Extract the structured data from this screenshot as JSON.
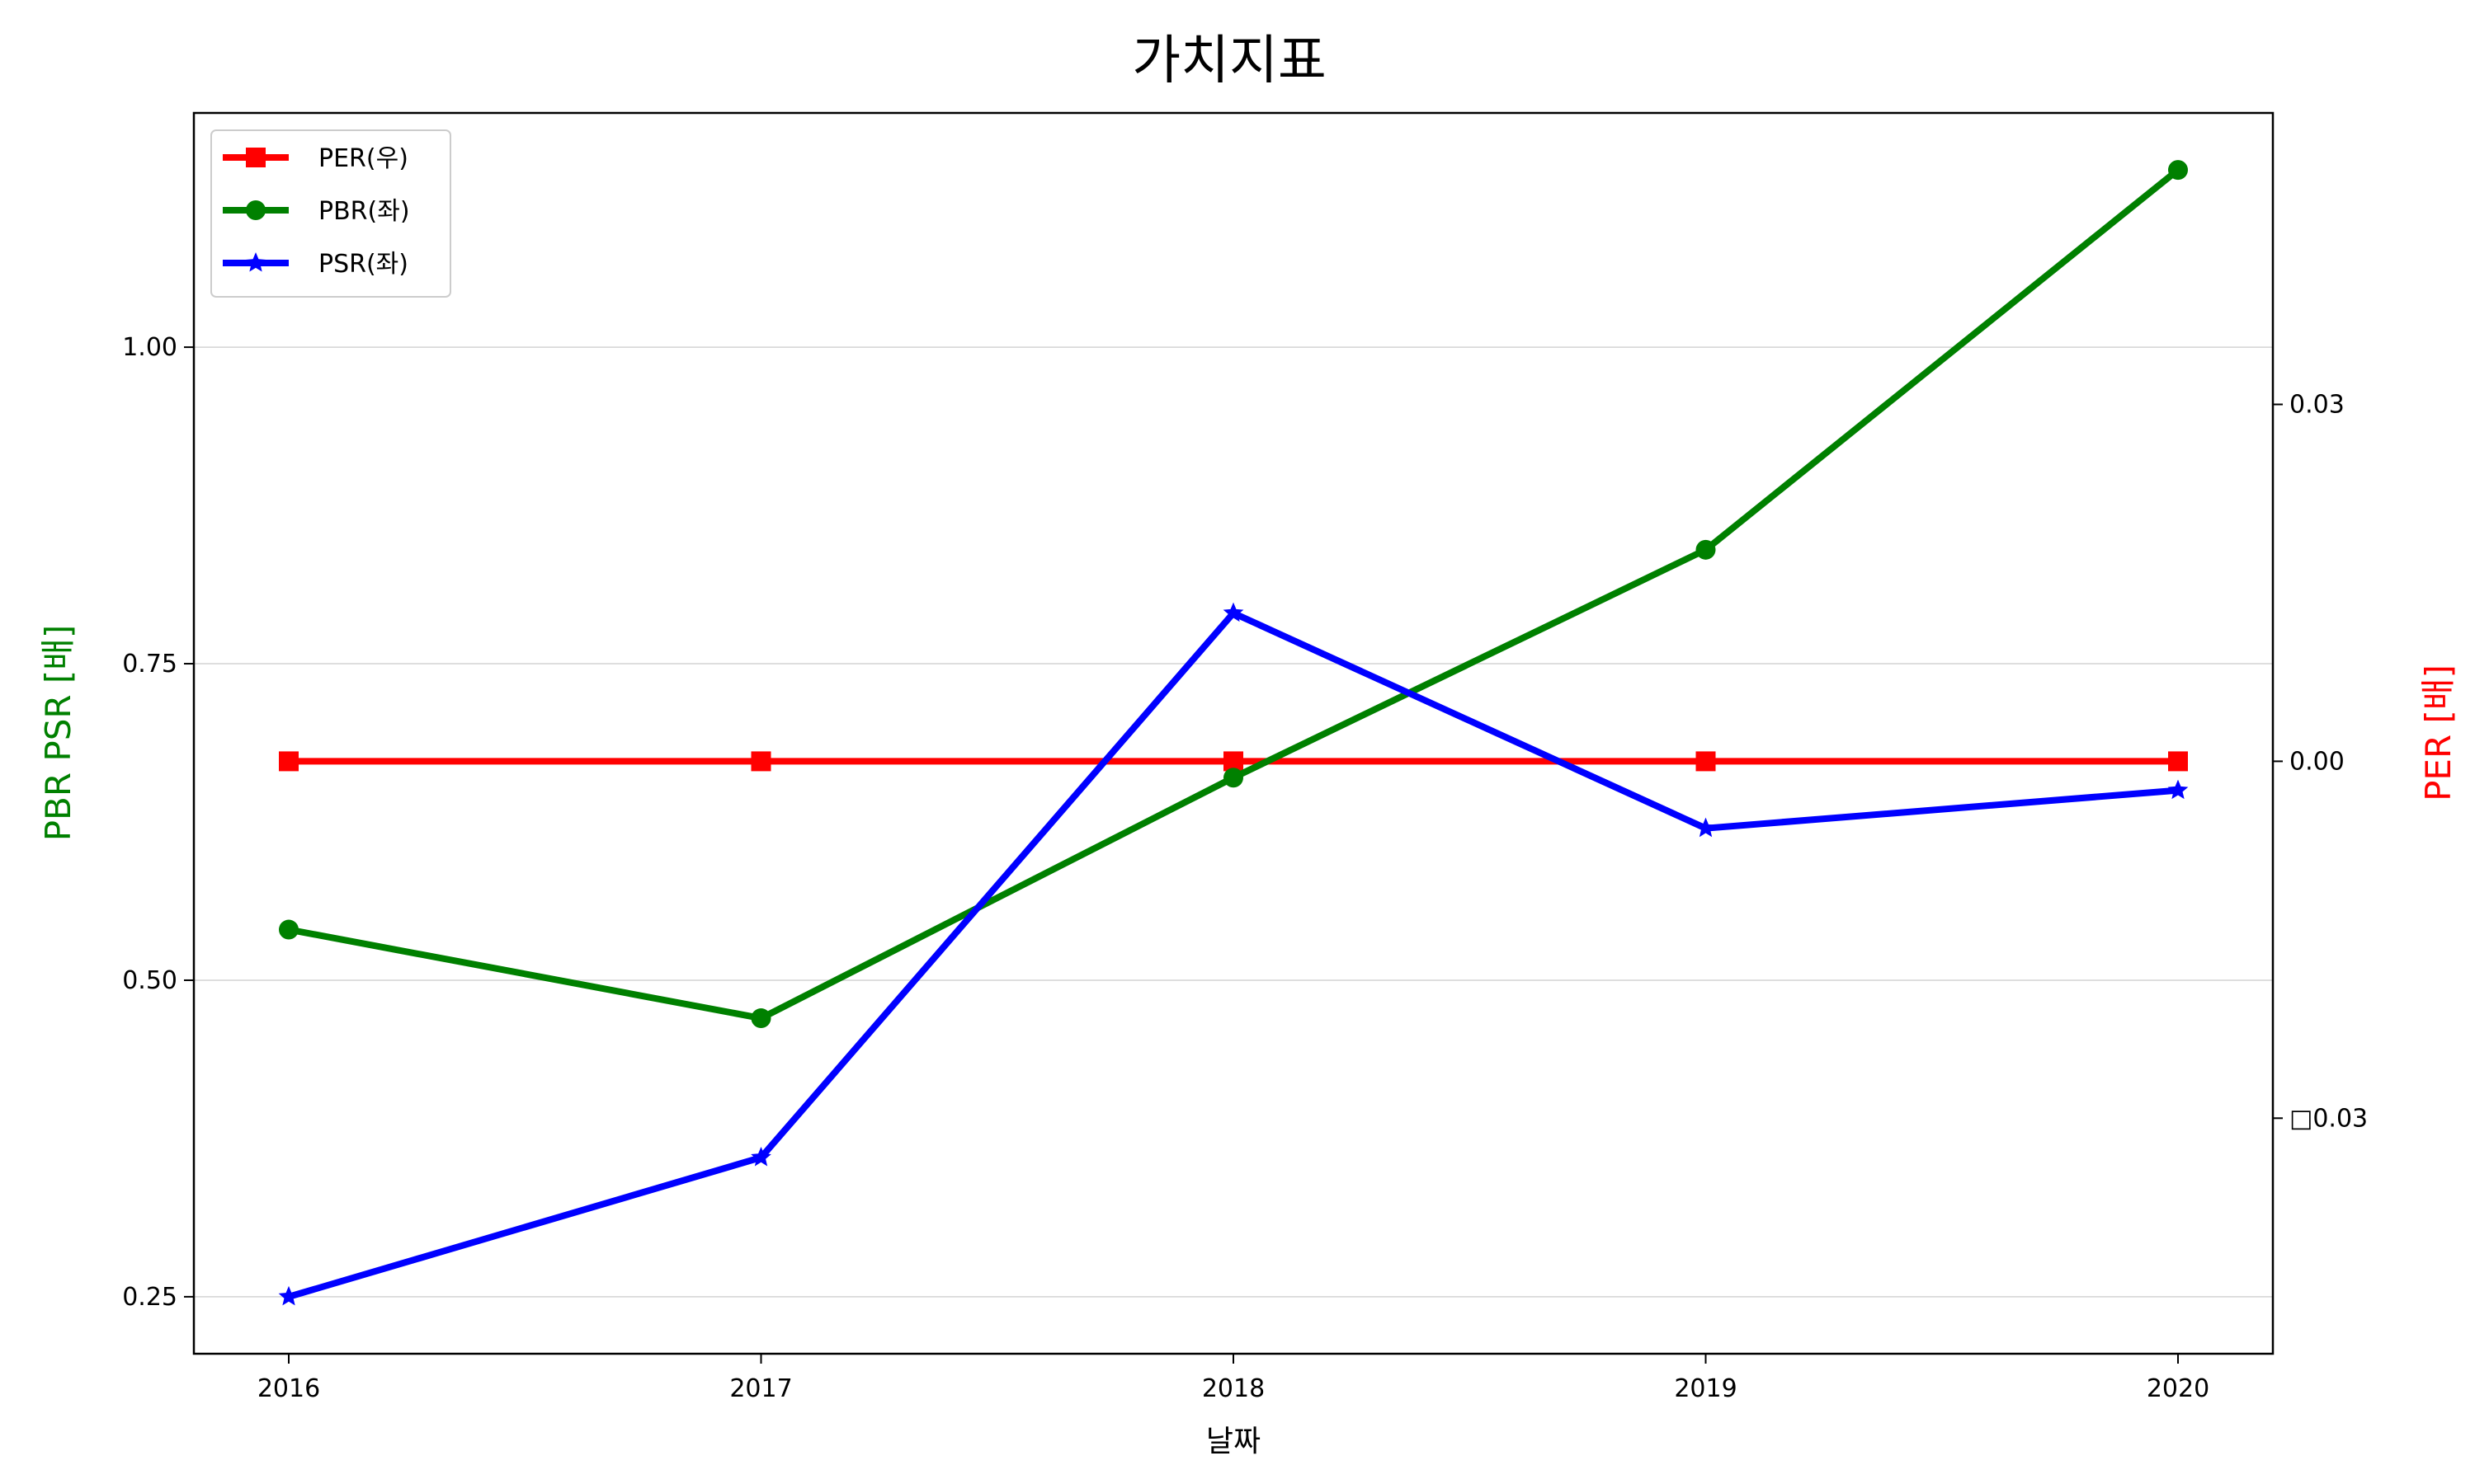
{
  "chart_data": {
    "type": "line",
    "title": "가치지표",
    "xlabel": "날짜",
    "ylabel_left": "PBR PSR [배]",
    "ylabel_right": "PER [배]",
    "categories": [
      "2016",
      "2017",
      "2018",
      "2019",
      "2020"
    ],
    "left_axis": {
      "ylim": [
        0.205,
        1.185
      ],
      "ticks": [
        0.25,
        0.5,
        0.75,
        1.0
      ],
      "tick_labels": [
        "0.25",
        "0.50",
        "0.75",
        "1.00"
      ],
      "grid": true
    },
    "right_axis": {
      "ylim": [
        -0.0498,
        0.0545
      ],
      "ticks": [
        -0.03,
        0.0,
        0.03
      ],
      "tick_labels": [
        "□0.03",
        "0.00",
        "0.03"
      ]
    },
    "series": [
      {
        "name": "PER(우)",
        "axis": "right",
        "color": "#ff0000",
        "marker": "square",
        "values": [
          0,
          0,
          0,
          0,
          0
        ]
      },
      {
        "name": "PBR(좌)",
        "axis": "left",
        "color": "#008000",
        "marker": "circle",
        "values": [
          0.54,
          0.47,
          0.66,
          0.84,
          1.14
        ]
      },
      {
        "name": "PSR(좌)",
        "axis": "left",
        "color": "#0000ff",
        "marker": "star",
        "values": [
          0.25,
          0.36,
          0.79,
          0.62,
          0.65
        ]
      }
    ],
    "legend_position": "top-left",
    "left_label_color": "#008000",
    "right_label_color": "#ff0000"
  }
}
